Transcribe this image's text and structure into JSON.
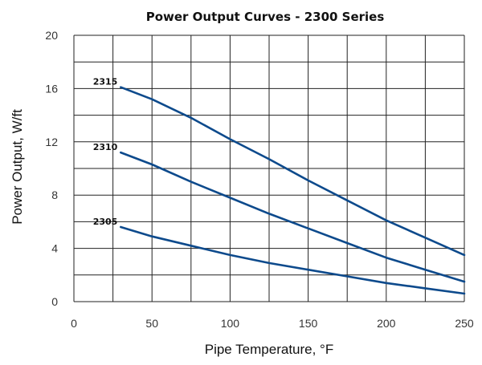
{
  "chart_data": {
    "type": "line",
    "title": "Power Output Curves - 2300 Series",
    "xlabel": "Pipe Temperature, °F",
    "ylabel": "Power Output, W/ft",
    "xlim": [
      0,
      250
    ],
    "ylim": [
      0,
      20
    ],
    "xticks": [
      0,
      50,
      100,
      150,
      200,
      250
    ],
    "yticks": [
      0,
      4,
      8,
      12,
      16,
      20
    ],
    "x_minor_step": 25,
    "y_minor_step": 2,
    "grid": true,
    "series": [
      {
        "name": "2315",
        "color": "#0d4a8c",
        "x": [
          30,
          50,
          75,
          100,
          125,
          150,
          175,
          200,
          225,
          250
        ],
        "y": [
          16.1,
          15.2,
          13.8,
          12.2,
          10.7,
          9.1,
          7.6,
          6.1,
          4.8,
          3.5
        ]
      },
      {
        "name": "2310",
        "color": "#0d4a8c",
        "x": [
          30,
          50,
          75,
          100,
          125,
          150,
          175,
          200,
          225,
          250
        ],
        "y": [
          11.2,
          10.3,
          9.0,
          7.8,
          6.6,
          5.5,
          4.4,
          3.3,
          2.4,
          1.5
        ]
      },
      {
        "name": "2305",
        "color": "#0d4a8c",
        "x": [
          30,
          50,
          75,
          100,
          125,
          150,
          175,
          200,
          225,
          250
        ],
        "y": [
          5.6,
          4.9,
          4.2,
          3.5,
          2.9,
          2.4,
          1.9,
          1.4,
          1.0,
          0.6
        ]
      }
    ]
  }
}
